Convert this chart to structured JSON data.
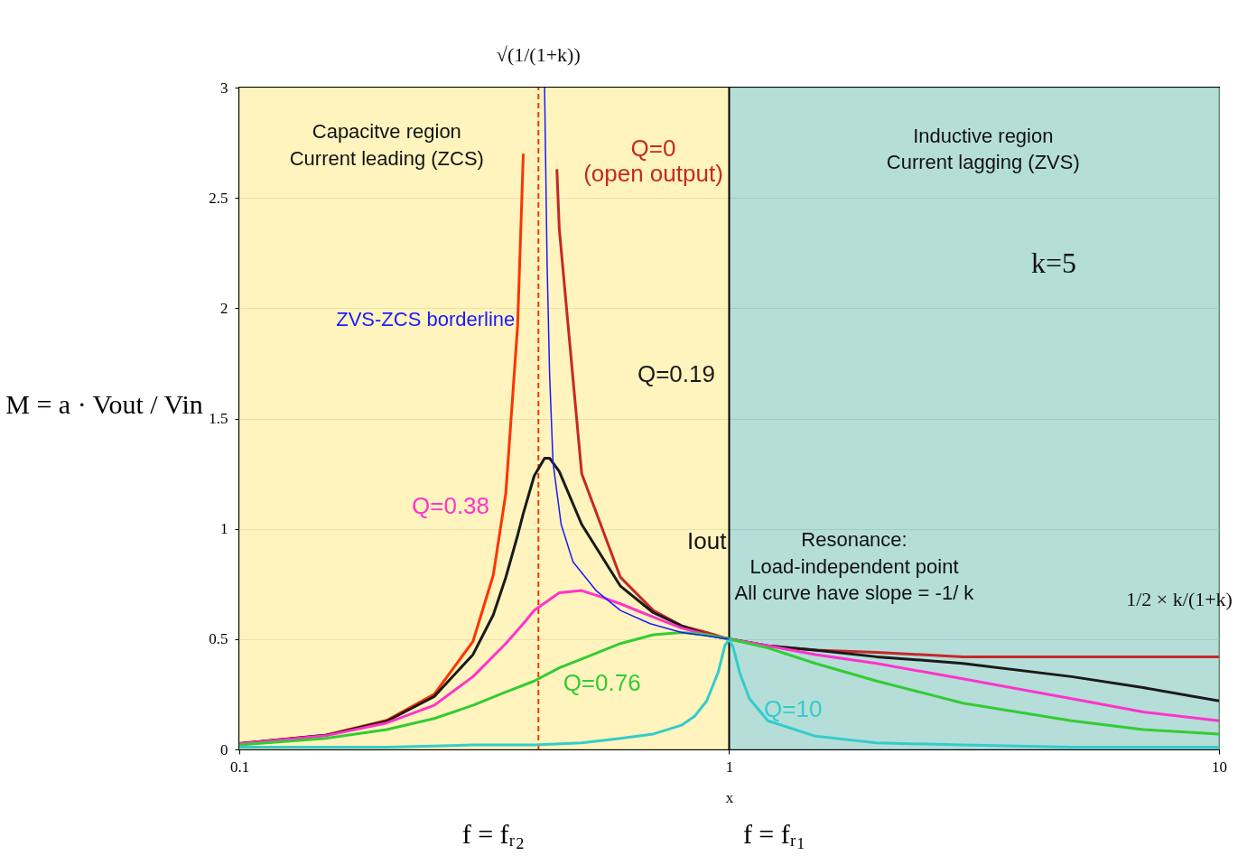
{
  "chart_data": {
    "type": "line",
    "xlabel": "x",
    "ylabel": "M = a · Vout / Vin",
    "log": "x",
    "xlim": [
      0.1,
      10
    ],
    "ylim": [
      0,
      3
    ],
    "xticks": [
      0.1,
      1,
      10
    ],
    "yticks": [
      0,
      0.5,
      1,
      1.5,
      2,
      2.5,
      3
    ],
    "grid": true,
    "marker": "none",
    "line_style": "solid",
    "series": [
      {
        "color": "#ff3300",
        "x": [
          0.1,
          0.15,
          0.2,
          0.25,
          0.3,
          0.33,
          0.35,
          0.37,
          0.38
        ],
        "values": [
          0.027,
          0.065,
          0.132,
          0.25,
          0.49,
          0.79,
          1.16,
          1.92,
          2.7
        ]
      },
      {
        "name": "Q=0\n(open output)",
        "color": "#c62828",
        "x": [
          0.445,
          0.45,
          0.5,
          0.6,
          0.7,
          0.8,
          0.9,
          1,
          1.2,
          1.5,
          2,
          3,
          5,
          7,
          10
        ],
        "values": [
          2.63,
          2.36,
          1.25,
          0.78,
          0.63,
          0.56,
          0.53,
          0.5,
          0.47,
          0.45,
          0.44,
          0.42,
          0.42,
          0.42,
          0.42
        ]
      },
      {
        "name": "Q=0.19",
        "color": "#1a1a1a",
        "x": [
          0.1,
          0.15,
          0.2,
          0.25,
          0.3,
          0.33,
          0.35,
          0.37,
          0.38,
          0.4,
          0.42,
          0.43,
          0.45,
          0.5,
          0.6,
          0.7,
          0.8,
          0.9,
          1,
          1.2,
          1.5,
          2,
          3,
          5,
          7,
          10
        ],
        "values": [
          0.027,
          0.064,
          0.128,
          0.24,
          0.43,
          0.61,
          0.78,
          0.97,
          1.07,
          1.24,
          1.32,
          1.32,
          1.26,
          1.02,
          0.74,
          0.62,
          0.56,
          0.52,
          0.5,
          0.47,
          0.45,
          0.42,
          0.39,
          0.33,
          0.28,
          0.22
        ]
      },
      {
        "name": "Q=0.38",
        "color": "#ff33cc",
        "x": [
          0.1,
          0.15,
          0.2,
          0.25,
          0.3,
          0.35,
          0.38,
          0.4,
          0.45,
          0.5,
          0.55,
          0.6,
          0.7,
          0.8,
          0.9,
          1,
          1.2,
          1.5,
          2,
          3,
          5,
          7,
          10
        ],
        "values": [
          0.026,
          0.062,
          0.12,
          0.2,
          0.33,
          0.48,
          0.57,
          0.63,
          0.71,
          0.72,
          0.69,
          0.66,
          0.6,
          0.55,
          0.52,
          0.5,
          0.47,
          0.43,
          0.39,
          0.32,
          0.23,
          0.17,
          0.13
        ]
      },
      {
        "name": "Q=0.76",
        "color": "#33cc33",
        "x": [
          0.1,
          0.15,
          0.2,
          0.25,
          0.3,
          0.35,
          0.4,
          0.45,
          0.5,
          0.6,
          0.7,
          0.8,
          0.9,
          1,
          1.2,
          1.5,
          2,
          3,
          5,
          7,
          10
        ],
        "values": [
          0.02,
          0.05,
          0.09,
          0.14,
          0.2,
          0.26,
          0.31,
          0.37,
          0.41,
          0.48,
          0.52,
          0.53,
          0.52,
          0.5,
          0.46,
          0.39,
          0.31,
          0.21,
          0.13,
          0.09,
          0.07
        ]
      },
      {
        "name": "Q=10",
        "color": "#33cccc",
        "x": [
          0.1,
          0.2,
          0.3,
          0.4,
          0.5,
          0.6,
          0.7,
          0.8,
          0.85,
          0.9,
          0.95,
          0.98,
          1,
          1.02,
          1.05,
          1.1,
          1.2,
          1.5,
          2,
          3,
          5,
          10
        ],
        "values": [
          0.01,
          0.01,
          0.02,
          0.02,
          0.03,
          0.05,
          0.07,
          0.11,
          0.15,
          0.22,
          0.35,
          0.47,
          0.5,
          0.46,
          0.35,
          0.23,
          0.13,
          0.06,
          0.03,
          0.02,
          0.01,
          0.01
        ]
      },
      {
        "name": "ZVS-ZCS borderline",
        "color": "#1a1aff",
        "x": [
          0.42,
          0.425,
          0.43,
          0.437,
          0.454,
          0.48,
          0.535,
          0.6,
          0.69,
          0.8,
          1
        ],
        "values": [
          3,
          2.2,
          1.7,
          1.3,
          1.02,
          0.85,
          0.72,
          0.63,
          0.57,
          0.53,
          0.5
        ]
      }
    ],
    "bands": [
      {
        "axis": "x",
        "from": 0.1,
        "to": 1,
        "color": "#fff2b3"
      },
      {
        "axis": "x",
        "from": 1,
        "to": 10,
        "color": "#a8d8d2"
      }
    ],
    "ref_lines": [
      {
        "axis": "x",
        "value": 0.408,
        "label": "f = fᵣ₂",
        "color": "#ff3300",
        "line_style": "dashed"
      },
      {
        "axis": "x",
        "value": 1,
        "label": "f = fᵣ₁",
        "color": "#000000",
        "line_style": "solid"
      }
    ],
    "annotations": [
      "Capacitve region\nCurrent leading (ZCS)",
      "Inductive region\nCurrent lagging (ZVS)",
      "k=5",
      "Iout",
      "Resonance:\nLoad-independent point\nAll curve have slope = -1/ k",
      "1/2 × k/(1+k)",
      "√(1/(1+k))"
    ]
  }
}
